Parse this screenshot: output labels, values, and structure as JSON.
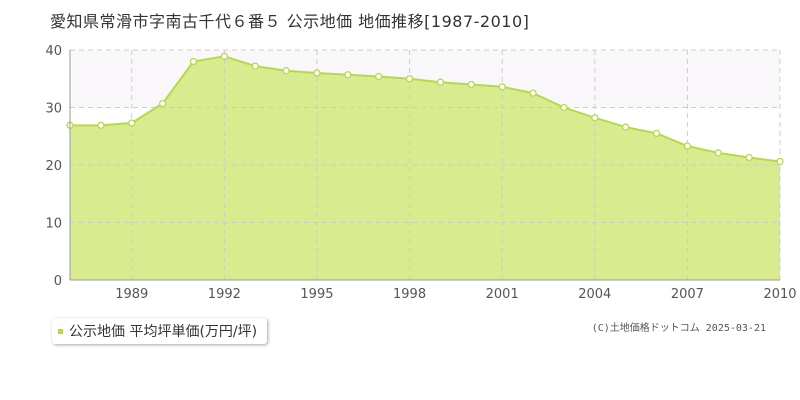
{
  "chart_data": {
    "type": "area",
    "title": "愛知県常滑市字南古千代６番５ 公示地価 地価推移[1987-2010]",
    "xlabel": "",
    "ylabel": "",
    "x": [
      1987,
      1988,
      1989,
      1990,
      1991,
      1992,
      1993,
      1994,
      1995,
      1996,
      1997,
      1998,
      1999,
      2000,
      2001,
      2002,
      2003,
      2004,
      2005,
      2006,
      2007,
      2008,
      2009,
      2010
    ],
    "series": [
      {
        "name": "公示地価 平均坪単価(万円/坪)",
        "values": [
          26.9,
          26.9,
          27.3,
          30.7,
          38.0,
          38.9,
          37.2,
          36.4,
          36.0,
          35.7,
          35.4,
          35.0,
          34.4,
          34.0,
          33.6,
          32.5,
          30.0,
          28.2,
          26.6,
          25.5,
          23.3,
          22.1,
          21.3,
          20.6
        ]
      }
    ],
    "ylim": [
      0,
      40
    ],
    "xlim": [
      1987,
      2010
    ],
    "yticks": [
      0,
      10,
      20,
      30,
      40
    ],
    "xticks": [
      1989,
      1992,
      1995,
      1998,
      2001,
      2004,
      2007,
      2010
    ],
    "grid": true,
    "legend_position": "bottom-left",
    "colors": {
      "fill": "#d9eb8f",
      "line": "#b6d94c",
      "marker_fill": "#ffffff",
      "grid": "#cccccc",
      "legend_marker": "#b6d94c"
    }
  },
  "credit": "(C)土地価格ドットコム 2025-03-21"
}
